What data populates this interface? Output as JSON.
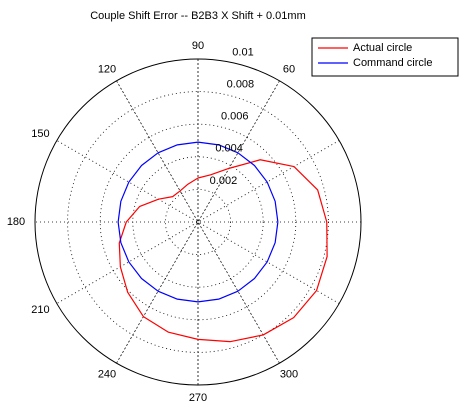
{
  "chart_data": {
    "type": "polar",
    "title": "Couple Shift Error -- B2B3 X Shift + 0.01mm",
    "rlim": [
      0,
      0.01
    ],
    "rticks": [
      0.002,
      0.004,
      0.006,
      0.008,
      0.01
    ],
    "thetaticks": [
      60,
      90,
      120,
      150,
      180,
      210,
      240,
      270,
      300
    ],
    "theta": [
      0,
      15,
      30,
      45,
      60,
      75,
      90,
      105,
      120,
      135,
      150,
      165,
      180,
      195,
      210,
      225,
      240,
      255,
      270,
      285,
      300,
      315,
      330,
      345,
      360
    ],
    "series": [
      {
        "name": "Actual circle",
        "color": "#ff0000",
        "values": [
          0.0079,
          0.0076,
          0.0068,
          0.0054,
          0.0038,
          0.003,
          0.0027,
          0.0024,
          0.0022,
          0.0022,
          0.0028,
          0.0037,
          0.0044,
          0.005,
          0.0055,
          0.0061,
          0.0067,
          0.007,
          0.0072,
          0.0076,
          0.008,
          0.0083,
          0.0084,
          0.0082,
          0.0079
        ]
      },
      {
        "name": "Command circle",
        "color": "#0000ff",
        "values": [
          0.0049,
          0.0049,
          0.0049,
          0.0049,
          0.0049,
          0.0049,
          0.0049,
          0.0049,
          0.0049,
          0.0049,
          0.0049,
          0.0049,
          0.0049,
          0.0049,
          0.0049,
          0.0049,
          0.0049,
          0.0049,
          0.0049,
          0.0049,
          0.0049,
          0.0049,
          0.0049,
          0.0049,
          0.0049
        ]
      }
    ],
    "legend": "upper right"
  }
}
